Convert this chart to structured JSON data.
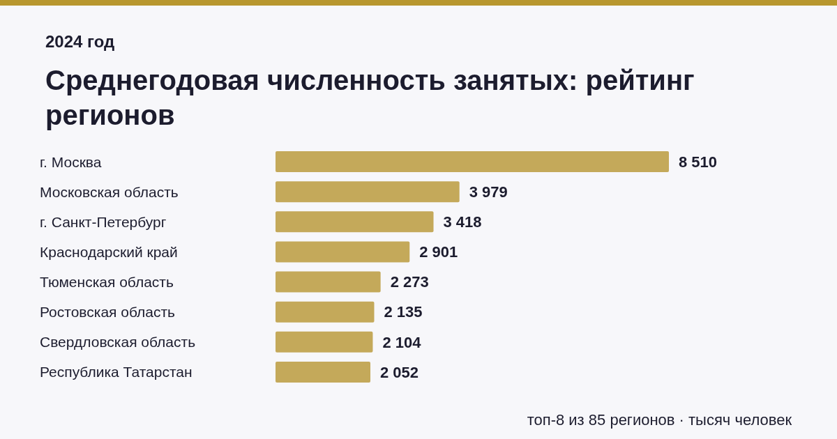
{
  "chart_data": {
    "type": "bar",
    "orientation": "horizontal",
    "title": "Среднегодовая численность занятых: рейтинг регионов",
    "subtitle": "2024 год",
    "categories": [
      "г. Москва",
      "Московская область",
      "г. Санкт-Петербург",
      "Краснодарский край",
      "Тюменская область",
      "Ростовская область",
      "Свердловская область",
      "Республика Татарстан"
    ],
    "values": [
      8510,
      3979,
      3418,
      2901,
      2273,
      2135,
      2104,
      2052
    ],
    "value_labels": [
      "8 510",
      "3 979",
      "3 418",
      "2 901",
      "2 273",
      "2 135",
      "2 104",
      "2 052"
    ],
    "color": "#c4a95a",
    "annotations": [
      "топ-8 из 85 регионов · тысяч человек"
    ]
  }
}
